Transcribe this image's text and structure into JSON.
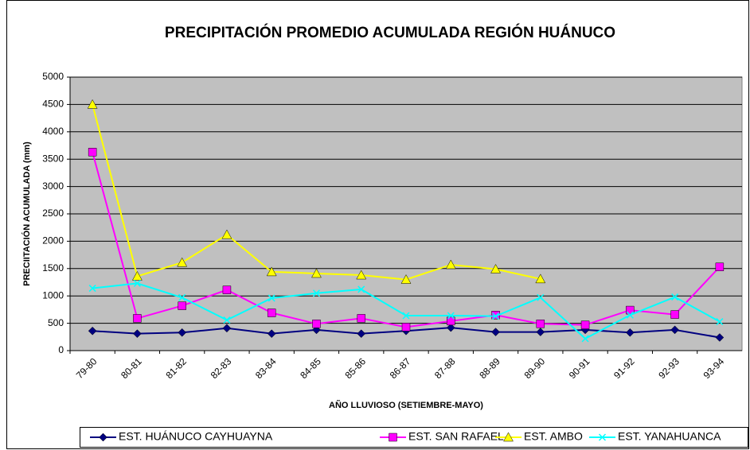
{
  "chart_data": {
    "type": "line",
    "title": "PRECIPITACIÓN PROMEDIO ACUMULADA REGIÓN HUÁNUCO",
    "x_label": "AÑO LLUVIOSO (SETIEMBRE-MAYO)",
    "y_label": "PRECIITACIÓN ACUMULADA (mm)",
    "categories": [
      "79-80",
      "80-81",
      "81-82",
      "82-83",
      "83-84",
      "84-85",
      "85-86",
      "86-87",
      "87-88",
      "88-89",
      "89-90",
      "90-91",
      "91-92",
      "92-93",
      "93-94"
    ],
    "series": [
      {
        "name": "EST. HUÁNUCO CAYHUAYNA",
        "color": "#000080",
        "marker": "diamond",
        "values": [
          360,
          310,
          330,
          410,
          310,
          380,
          310,
          360,
          420,
          340,
          340,
          380,
          330,
          380,
          240
        ]
      },
      {
        "name": "EST. SAN RAFAEL",
        "color": "#ff00ff",
        "marker": "square",
        "values": [
          3630,
          590,
          820,
          1110,
          690,
          490,
          590,
          430,
          540,
          650,
          490,
          470,
          740,
          660,
          1530
        ]
      },
      {
        "name": "EST. AMBO",
        "color": "#ffff00",
        "marker": "triangle",
        "values": [
          4500,
          1360,
          1610,
          2120,
          1440,
          1410,
          1380,
          1300,
          1570,
          1490,
          1310,
          null,
          null,
          null,
          null
        ]
      },
      {
        "name": "EST. YANAHUANCA",
        "color": "#00ffff",
        "marker": "x",
        "values": [
          1140,
          1230,
          970,
          560,
          960,
          1050,
          1120,
          640,
          640,
          630,
          970,
          220,
          650,
          980,
          530
        ]
      }
    ],
    "ylim": [
      0,
      5000
    ],
    "yticks": [
      0,
      500,
      1000,
      1500,
      2000,
      2500,
      3000,
      3500,
      4000,
      4500,
      5000
    ],
    "grid": true,
    "plot_background": "#c0c0c0",
    "legend": "bottom"
  }
}
